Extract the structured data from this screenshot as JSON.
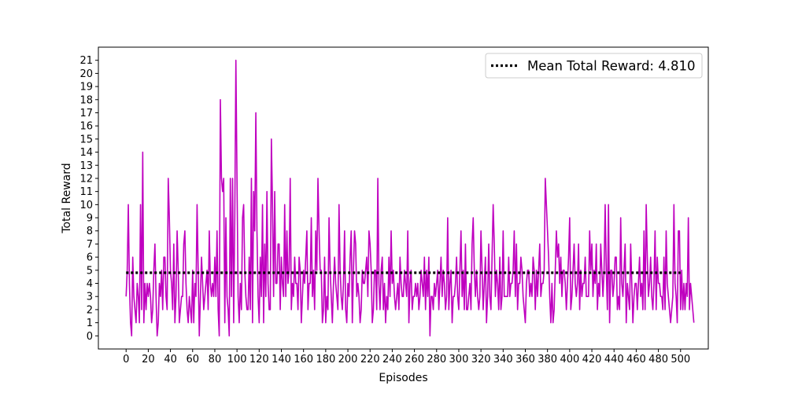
{
  "chart_data": {
    "type": "line",
    "xlabel": "Episodes",
    "ylabel": "Total Reward",
    "xlim": [
      -25,
      525
    ],
    "ylim": [
      -1,
      22
    ],
    "xticks": [
      0,
      20,
      40,
      60,
      80,
      100,
      120,
      140,
      160,
      180,
      200,
      220,
      240,
      260,
      280,
      300,
      320,
      340,
      360,
      380,
      400,
      420,
      440,
      460,
      480,
      500
    ],
    "yticks": [
      0,
      1,
      2,
      3,
      4,
      5,
      6,
      7,
      8,
      9,
      10,
      11,
      12,
      13,
      14,
      15,
      16,
      17,
      18,
      19,
      20,
      21
    ],
    "grid": false,
    "legend_position": "top-right",
    "series": [
      {
        "type": "line",
        "color": "#bf00bf",
        "x_start": 0,
        "x_step": 1,
        "values": [
          3,
          5,
          10,
          4,
          1,
          0,
          6,
          3,
          2,
          1,
          4,
          3,
          1,
          10,
          2,
          14,
          1,
          4,
          2,
          4,
          3,
          4,
          3,
          1,
          2,
          5,
          7,
          3,
          0,
          1,
          4,
          3,
          5,
          2,
          6,
          6,
          3,
          2,
          12,
          9,
          5,
          4,
          2,
          7,
          1,
          3,
          8,
          5,
          1,
          2,
          3,
          3,
          7,
          8,
          4,
          2,
          1,
          3,
          2,
          1,
          5,
          1,
          4,
          3,
          10,
          5,
          0,
          3,
          6,
          4,
          2,
          3,
          4,
          5,
          2,
          8,
          4,
          3,
          4,
          3,
          6,
          3,
          8,
          2,
          0,
          18,
          12,
          11,
          12,
          1,
          9,
          3,
          2,
          0,
          12,
          3,
          12,
          1,
          9,
          21,
          12,
          3,
          1,
          4,
          2,
          9,
          10,
          5,
          3,
          2,
          2,
          6,
          2,
          12,
          1,
          11,
          8,
          17,
          8,
          3,
          1,
          6,
          3,
          10,
          1,
          7,
          3,
          11,
          4,
          2,
          2,
          15,
          10,
          3,
          11,
          4,
          4,
          7,
          7,
          2,
          6,
          4,
          3,
          10,
          3,
          8,
          4,
          5,
          12,
          2,
          4,
          3,
          6,
          4,
          4,
          2,
          6,
          5,
          1,
          3,
          5,
          4,
          6,
          8,
          2,
          4,
          4,
          9,
          3,
          5,
          2,
          8,
          5,
          12,
          8,
          5,
          5,
          1,
          2,
          6,
          1,
          3,
          2,
          9,
          5,
          3,
          1,
          4,
          6,
          4,
          3,
          2,
          10,
          5,
          3,
          2,
          4,
          8,
          2,
          1,
          4,
          3,
          6,
          8,
          1,
          5,
          8,
          7,
          3,
          4,
          3,
          1,
          2,
          5,
          4,
          4,
          5,
          6,
          3,
          8,
          7,
          5,
          1,
          2,
          5,
          5,
          2,
          12,
          4,
          2,
          5,
          6,
          2,
          4,
          1,
          3,
          2,
          6,
          3,
          8,
          4,
          5,
          3,
          2,
          3,
          4,
          2,
          6,
          4,
          3,
          3,
          5,
          4,
          3,
          8,
          1,
          4,
          5,
          2,
          3,
          3,
          4,
          3,
          4,
          2,
          3,
          5,
          4,
          3,
          6,
          2,
          5,
          3,
          6,
          0,
          3,
          3,
          2,
          4,
          3,
          4,
          5,
          2,
          4,
          6,
          3,
          5,
          4,
          2,
          3,
          9,
          2,
          4,
          5,
          1,
          3,
          3,
          4,
          6,
          3,
          2,
          5,
          8,
          3,
          5,
          2,
          7,
          2,
          2,
          3,
          4,
          2,
          7,
          9,
          5,
          3,
          5,
          3,
          2,
          3,
          8,
          5,
          2,
          4,
          6,
          1,
          3,
          7,
          3,
          2,
          6,
          10,
          7,
          3,
          5,
          4,
          2,
          6,
          2,
          3,
          8,
          3,
          3,
          3,
          3,
          6,
          3,
          4,
          4,
          5,
          8,
          3,
          7,
          2,
          4,
          4,
          6,
          5,
          3,
          2,
          1,
          4,
          5,
          5,
          3,
          4,
          3,
          6,
          5,
          2,
          5,
          3,
          5,
          7,
          3,
          4,
          4,
          5,
          12,
          10,
          8,
          6,
          3,
          1,
          4,
          1,
          2,
          5,
          8,
          6,
          7,
          4,
          6,
          3,
          5,
          5,
          4,
          2,
          4,
          6,
          9,
          2,
          3,
          5,
          7,
          4,
          3,
          4,
          7,
          2,
          5,
          3,
          4,
          4,
          6,
          3,
          3,
          3,
          8,
          5,
          7,
          3,
          5,
          4,
          7,
          2,
          4,
          3,
          7,
          5,
          3,
          5,
          10,
          5,
          2,
          10,
          1,
          5,
          5,
          3,
          4,
          6,
          6,
          2,
          3,
          2,
          9,
          4,
          3,
          5,
          7,
          1,
          4,
          3,
          2,
          7,
          4,
          1,
          3,
          4,
          4,
          2,
          4,
          6,
          3,
          4,
          2,
          8,
          2,
          10,
          6,
          3,
          4,
          6,
          3,
          2,
          4,
          8,
          2,
          6,
          4,
          4,
          3,
          3,
          2,
          6,
          2,
          8,
          4,
          3,
          2,
          1,
          2,
          3,
          10,
          4,
          3,
          1,
          8,
          8,
          2,
          5,
          2,
          4,
          2,
          4,
          3,
          9,
          2,
          4,
          3,
          2,
          1
        ]
      },
      {
        "type": "hline",
        "name": "Mean Total Reward: 4.810",
        "value": 4.81,
        "x_range": [
          0,
          500
        ],
        "color": "#000000",
        "style": "dotted"
      }
    ]
  }
}
